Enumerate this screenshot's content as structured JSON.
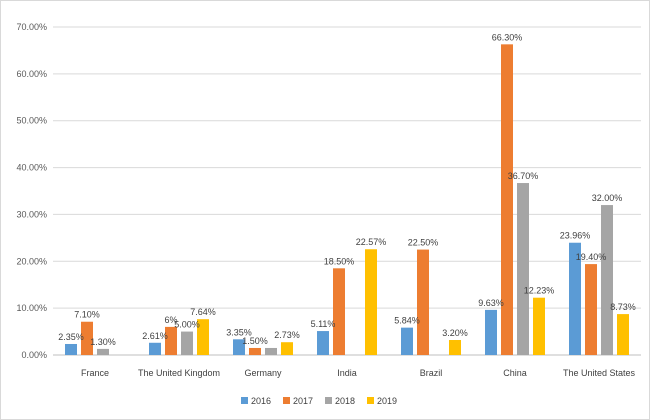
{
  "chart_data": {
    "type": "bar",
    "title": "",
    "xlabel": "",
    "ylabel": "",
    "categories": [
      "France",
      "The United Kingdom",
      "Germany",
      "India",
      "Brazil",
      "China",
      "The United States"
    ],
    "series": [
      {
        "name": "2016",
        "color": "#5B9BD5",
        "values": [
          2.35,
          2.61,
          3.35,
          5.11,
          5.84,
          9.63,
          23.96
        ],
        "labels": [
          "2.35%",
          "2.61%",
          "3.35%",
          "5.11%",
          "5.84%",
          "9.63%",
          "23.96%"
        ]
      },
      {
        "name": "2017",
        "color": "#ED7D31",
        "values": [
          7.1,
          6,
          1.5,
          18.5,
          22.5,
          66.3,
          19.4
        ],
        "labels": [
          "7.10%",
          "6%",
          "1.50%",
          "18.50%",
          "22.50%",
          "66.30%",
          "19.40%"
        ]
      },
      {
        "name": "2018",
        "color": "#A5A5A5",
        "values": [
          1.3,
          5.0,
          1.5,
          null,
          null,
          36.7,
          32.0
        ],
        "labels": [
          "1.30%",
          "5.00%",
          "",
          "",
          "",
          "36.70%",
          "32.00%"
        ]
      },
      {
        "name": "2019",
        "color": "#FFC000",
        "values": [
          null,
          7.64,
          2.73,
          22.57,
          3.2,
          12.23,
          8.73
        ],
        "labels": [
          "",
          "7.64%",
          "2.73%",
          "22.57%",
          "3.20%",
          "12.23%",
          "8.73%"
        ]
      }
    ],
    "ylim": [
      0,
      70
    ],
    "yticks": [
      "0.00%",
      "10.00%",
      "20.00%",
      "30.00%",
      "40.00%",
      "50.00%",
      "60.00%",
      "70.00%"
    ],
    "grid": true,
    "legend": "bottom"
  }
}
